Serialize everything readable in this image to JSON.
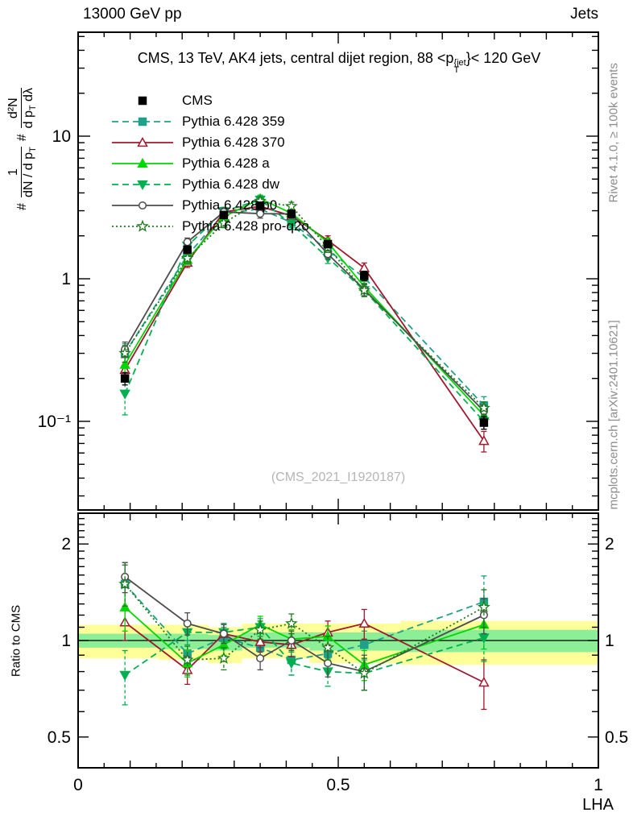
{
  "header": {
    "left": "13000 GeV pp",
    "right": "Jets"
  },
  "title": {
    "prefix": "CMS, 13 TeV, AK4 jets, central dijet region, 88 <p",
    "sup": "{jet",
    "sub": "T",
    "suffix": "}< 120 GeV"
  },
  "ylabel": {
    "h1": "#",
    "f1n": "1",
    "f1d": "dN / d p",
    "f1dsub": "T",
    "h2": "#",
    "f2n": "d²N",
    "f2d1": "d p",
    "f2dsub": "T",
    "f2d2": " dλ"
  },
  "ratio_ylabel": "Ratio to CMS",
  "xlabel": "LHA",
  "watermark": "(CMS_2021_I1920187)",
  "side_notes": {
    "top_right": "Rivet 4.1.0, ≥ 100k events",
    "bottom_right": "mcplots.cern.ch [arXiv:2401.10621]"
  },
  "axes": {
    "main_y_ticks": [
      {
        "value": 10,
        "label": "10"
      },
      {
        "value": 1,
        "label": "1"
      },
      {
        "value": 0.1,
        "label": "10⁻¹"
      }
    ],
    "ratio_y_ticks": [
      {
        "value": 2,
        "label": "2"
      },
      {
        "value": 1,
        "label": "1"
      },
      {
        "value": 0.5,
        "label": "0.5"
      }
    ],
    "x_ticks": [
      {
        "value": 0,
        "label": "0"
      },
      {
        "value": 0.5,
        "label": "0.5"
      },
      {
        "value": 1,
        "label": "1"
      }
    ]
  },
  "colors": {
    "band_yellow": "#ffff99",
    "band_green": "#8cee96",
    "ref_line": "#000000",
    "frame": "#000000"
  },
  "chart_data": {
    "type": "line",
    "title": "CMS, 13 TeV, AK4 jets, central dijet region, 88 < pT{jet} < 120 GeV",
    "xlabel": "LHA",
    "ylabel": "# 1/(dN/dpT) # d²N/(dpT dλ)",
    "ratio_label": "Ratio to CMS",
    "x": [
      0.09,
      0.21,
      0.28,
      0.35,
      0.41,
      0.48,
      0.55,
      0.78
    ],
    "xlim": [
      0,
      1
    ],
    "main_y_log_range": [
      0.024,
      53
    ],
    "ratio_y_log_range": [
      0.4,
      2.49
    ],
    "series": [
      {
        "name": "CMS",
        "color": "#000000",
        "line": "none",
        "marker": "square",
        "filled": true,
        "values": [
          0.2,
          1.6,
          2.8,
          3.25,
          2.85,
          1.75,
          1.05,
          0.098
        ],
        "errors": [
          0.02,
          0.09,
          0.14,
          0.16,
          0.14,
          0.1,
          0.08,
          0.01
        ]
      },
      {
        "name": "Pythia 6.428 359",
        "color": "#1fa189",
        "line": "dashed",
        "marker": "square",
        "filled": true,
        "values": [
          0.3,
          1.46,
          2.86,
          3.09,
          2.48,
          1.59,
          1.02,
          0.129
        ],
        "errors": [
          0.05,
          0.12,
          0.2,
          0.22,
          0.2,
          0.13,
          0.09,
          0.02
        ],
        "ratio": [
          1.5,
          0.91,
          1.02,
          0.95,
          0.87,
          0.91,
          0.97,
          1.32
        ],
        "ratio_errors": [
          0.25,
          0.09,
          0.08,
          0.08,
          0.09,
          0.09,
          0.1,
          0.27
        ]
      },
      {
        "name": "Pythia 6.428 370",
        "color": "#a2182e",
        "line": "solid",
        "marker": "triangle-up",
        "filled": false,
        "values": [
          0.23,
          1.3,
          2.94,
          3.22,
          2.76,
          1.86,
          1.19,
          0.073
        ],
        "errors": [
          0.03,
          0.1,
          0.2,
          0.22,
          0.2,
          0.14,
          0.1,
          0.012
        ],
        "ratio": [
          1.14,
          0.81,
          1.05,
          0.99,
          0.97,
          1.06,
          1.13,
          0.74
        ],
        "ratio_errors": [
          0.14,
          0.08,
          0.08,
          0.07,
          0.08,
          0.09,
          0.12,
          0.13
        ]
      },
      {
        "name": "Pythia 6.428 a",
        "color": "#00d600",
        "line": "solid",
        "marker": "triangle-up",
        "filled": true,
        "values": [
          0.25,
          1.36,
          2.72,
          3.64,
          2.88,
          1.8,
          0.88,
          0.11
        ],
        "errors": [
          0.03,
          0.1,
          0.18,
          0.22,
          0.2,
          0.13,
          0.08,
          0.012
        ],
        "ratio": [
          1.27,
          0.85,
          0.97,
          1.12,
          1.01,
          1.03,
          0.84,
          1.12
        ],
        "ratio_errors": [
          0.2,
          0.08,
          0.07,
          0.07,
          0.07,
          0.08,
          0.09,
          0.18
        ]
      },
      {
        "name": "Pythia 6.428 dw",
        "color": "#00b050",
        "line": "dashed",
        "marker": "triangle-down",
        "filled": true,
        "values": [
          0.156,
          1.7,
          2.97,
          3.58,
          2.42,
          1.4,
          0.83,
          0.1
        ],
        "errors": [
          0.045,
          0.13,
          0.2,
          0.24,
          0.2,
          0.12,
          0.08,
          0.012
        ],
        "ratio": [
          0.78,
          1.06,
          1.06,
          1.1,
          0.85,
          0.8,
          0.79,
          1.02
        ],
        "ratio_errors": [
          0.15,
          0.09,
          0.07,
          0.07,
          0.07,
          0.08,
          0.09,
          0.16
        ]
      },
      {
        "name": "Pythia 6.428 p0",
        "color": "#4d4d4d",
        "line": "solid",
        "marker": "circle",
        "filled": false,
        "values": [
          0.32,
          1.81,
          2.94,
          2.86,
          2.85,
          1.49,
          0.84,
          0.118
        ],
        "errors": [
          0.04,
          0.12,
          0.2,
          0.2,
          0.2,
          0.12,
          0.08,
          0.012
        ],
        "ratio": [
          1.58,
          1.13,
          1.05,
          0.88,
          1.0,
          0.85,
          0.8,
          1.2
        ],
        "ratio_errors": [
          0.17,
          0.09,
          0.07,
          0.07,
          0.07,
          0.08,
          0.1,
          0.15
        ]
      },
      {
        "name": "Pythia 6.428 pro-q2o",
        "color": "#1e7a1e",
        "line": "dotted",
        "marker": "star",
        "filled": false,
        "values": [
          0.3,
          1.39,
          2.46,
          3.51,
          3.22,
          1.66,
          0.83,
          0.124
        ],
        "errors": [
          0.04,
          0.11,
          0.18,
          0.22,
          0.22,
          0.13,
          0.08,
          0.013
        ],
        "ratio": [
          1.5,
          0.87,
          0.88,
          1.08,
          1.13,
          0.95,
          0.79,
          1.27
        ],
        "ratio_errors": [
          0.22,
          0.09,
          0.07,
          0.07,
          0.08,
          0.08,
          0.09,
          0.17
        ]
      }
    ],
    "ratio_bands": [
      {
        "x0": 0.0,
        "x1": 0.155,
        "yellow": [
          0.88,
          1.12
        ],
        "green": [
          0.95,
          1.05
        ]
      },
      {
        "x0": 0.155,
        "x1": 0.25,
        "yellow": [
          0.87,
          1.12
        ],
        "green": [
          0.94,
          1.05
        ]
      },
      {
        "x0": 0.25,
        "x1": 0.315,
        "yellow": [
          0.85,
          1.1
        ],
        "green": [
          0.93,
          1.04
        ]
      },
      {
        "x0": 0.315,
        "x1": 0.445,
        "yellow": [
          0.88,
          1.13
        ],
        "green": [
          0.95,
          1.06
        ]
      },
      {
        "x0": 0.445,
        "x1": 0.62,
        "yellow": [
          0.85,
          1.13
        ],
        "green": [
          0.93,
          1.06
        ]
      },
      {
        "x0": 0.62,
        "x1": 1.0,
        "yellow": [
          0.84,
          1.15
        ],
        "green": [
          0.92,
          1.08
        ]
      }
    ],
    "legend_position": "top-left"
  }
}
